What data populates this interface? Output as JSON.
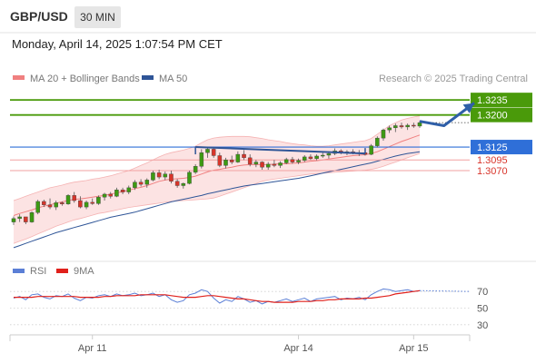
{
  "header": {
    "symbol": "GBP/USD",
    "timeframe": "30 MIN",
    "timestamp": "Monday, April 14, 2025 1:07:54 PM CET"
  },
  "chart_data": [
    {
      "type": "candlestick",
      "legend": [
        {
          "label": "MA 20 + Bollinger Bands",
          "color": "#f08080"
        },
        {
          "label": "MA 50",
          "color": "#2f5597"
        }
      ],
      "legend_placement": "top-left",
      "credit": "Research © 2025 Trading Central",
      "y_range": [
        1.2875,
        1.3265
      ],
      "levels": [
        {
          "value": 1.3235,
          "label": "1.3235",
          "color": "#4a9a0a",
          "style": "box"
        },
        {
          "value": 1.32,
          "label": "1.3200",
          "color": "#4a9a0a",
          "style": "box"
        },
        {
          "value": 1.3125,
          "label": "1.3125",
          "color": "#2f6fd8",
          "style": "box"
        },
        {
          "value": 1.3095,
          "label": "1.3095",
          "color": "#d8342a",
          "style": "text"
        },
        {
          "value": 1.307,
          "label": "1.3070",
          "color": "#d8342a",
          "style": "text"
        }
      ],
      "x_ticks": [
        "Apr 11",
        "Apr 14",
        "Apr 15"
      ],
      "candles": [
        [
          1.295,
          1.2963,
          1.2943,
          1.2958
        ],
        [
          1.2958,
          1.2968,
          1.295,
          1.2962
        ],
        [
          1.2962,
          1.296,
          1.2945,
          1.295
        ],
        [
          1.295,
          1.2975,
          1.2948,
          1.2972
        ],
        [
          1.2972,
          1.3002,
          1.2968,
          1.2998
        ],
        [
          1.2998,
          1.3002,
          1.2985,
          1.299
        ],
        [
          1.299,
          1.3005,
          1.298,
          1.2985
        ],
        [
          1.2985,
          1.3,
          1.2978,
          1.2995
        ],
        [
          1.2995,
          1.2998,
          1.2988,
          1.2992
        ],
        [
          1.2992,
          1.3015,
          1.299,
          1.3012
        ],
        [
          1.3012,
          1.302,
          1.2995,
          1.3
        ],
        [
          1.3,
          1.301,
          1.2982,
          1.2985
        ],
        [
          1.2985,
          1.3,
          1.298,
          1.2996
        ],
        [
          1.2996,
          1.3005,
          1.299,
          1.2993
        ],
        [
          1.2993,
          1.3012,
          1.299,
          1.3008
        ],
        [
          1.3008,
          1.3018,
          1.3,
          1.3015
        ],
        [
          1.3015,
          1.302,
          1.3005,
          1.301
        ],
        [
          1.301,
          1.303,
          1.3008,
          1.3025
        ],
        [
          1.3025,
          1.303,
          1.3015,
          1.302
        ],
        [
          1.302,
          1.3035,
          1.3015,
          1.303
        ],
        [
          1.303,
          1.3048,
          1.3025,
          1.3043
        ],
        [
          1.3043,
          1.305,
          1.3033,
          1.3038
        ],
        [
          1.3038,
          1.3052,
          1.303,
          1.3048
        ],
        [
          1.3048,
          1.307,
          1.3045,
          1.3065
        ],
        [
          1.3065,
          1.3072,
          1.305,
          1.3055
        ],
        [
          1.3055,
          1.3068,
          1.3048,
          1.3062
        ],
        [
          1.3062,
          1.307,
          1.304,
          1.3045
        ],
        [
          1.3045,
          1.305,
          1.303,
          1.3035
        ],
        [
          1.3035,
          1.3042,
          1.3028,
          1.304
        ],
        [
          1.304,
          1.307,
          1.3038,
          1.3066
        ],
        [
          1.3066,
          1.3085,
          1.3062,
          1.308
        ],
        [
          1.308,
          1.312,
          1.3075,
          1.3112
        ],
        [
          1.3112,
          1.3125,
          1.31,
          1.312
        ],
        [
          1.312,
          1.3124,
          1.31,
          1.3105
        ],
        [
          1.3105,
          1.3112,
          1.3078,
          1.3082
        ],
        [
          1.3082,
          1.31,
          1.3075,
          1.3095
        ],
        [
          1.3095,
          1.3105,
          1.3085,
          1.309
        ],
        [
          1.309,
          1.3115,
          1.3088,
          1.3108
        ],
        [
          1.3108,
          1.3118,
          1.3095,
          1.31
        ],
        [
          1.31,
          1.3108,
          1.308,
          1.3085
        ],
        [
          1.3085,
          1.3095,
          1.3078,
          1.309
        ],
        [
          1.309,
          1.3092,
          1.3072,
          1.3078
        ],
        [
          1.3078,
          1.309,
          1.3072,
          1.3085
        ],
        [
          1.3085,
          1.3095,
          1.3078,
          1.3082
        ],
        [
          1.3082,
          1.3092,
          1.3076,
          1.3088
        ],
        [
          1.3088,
          1.31,
          1.3085,
          1.3096
        ],
        [
          1.3096,
          1.3102,
          1.3086,
          1.309
        ],
        [
          1.309,
          1.3098,
          1.3085,
          1.3094
        ],
        [
          1.3094,
          1.3106,
          1.309,
          1.3102
        ],
        [
          1.3102,
          1.3108,
          1.3095,
          1.3098
        ],
        [
          1.3098,
          1.3108,
          1.3094,
          1.3104
        ],
        [
          1.3104,
          1.3112,
          1.31,
          1.3106
        ],
        [
          1.3106,
          1.3115,
          1.3098,
          1.311
        ],
        [
          1.311,
          1.3122,
          1.3106,
          1.3116
        ],
        [
          1.3116,
          1.312,
          1.3108,
          1.3112
        ],
        [
          1.3112,
          1.3118,
          1.3106,
          1.3114
        ],
        [
          1.3114,
          1.312,
          1.3108,
          1.311
        ],
        [
          1.311,
          1.3118,
          1.3104,
          1.3112
        ],
        [
          1.3112,
          1.3118,
          1.3105,
          1.3108
        ],
        [
          1.3108,
          1.3132,
          1.3106,
          1.3128
        ],
        [
          1.3128,
          1.315,
          1.3124,
          1.3146
        ],
        [
          1.3146,
          1.3168,
          1.314,
          1.3165
        ],
        [
          1.3165,
          1.3175,
          1.3158,
          1.317
        ],
        [
          1.317,
          1.318,
          1.316,
          1.3175
        ],
        [
          1.3175,
          1.3182,
          1.3168,
          1.3172
        ],
        [
          1.3172,
          1.318,
          1.3165,
          1.3176
        ],
        [
          1.3176,
          1.3182,
          1.317,
          1.3174
        ],
        [
          1.3174,
          1.3186,
          1.317,
          1.3182
        ]
      ],
      "ma20": [
        1.2965,
        1.297,
        1.2974,
        1.2978,
        1.2983,
        1.2987,
        1.299,
        1.2994,
        1.2997,
        1.3,
        1.3003,
        1.3004,
        1.3006,
        1.3008,
        1.301,
        1.3012,
        1.3015,
        1.3018,
        1.3021,
        1.3024,
        1.3028,
        1.3031,
        1.3035,
        1.304,
        1.3045,
        1.3048,
        1.305,
        1.3051,
        1.3052,
        1.3054,
        1.3057,
        1.3062,
        1.3067,
        1.3071,
        1.3073,
        1.3076,
        1.3078,
        1.3081,
        1.3083,
        1.3084,
        1.3084,
        1.3084,
        1.3084,
        1.3085,
        1.3086,
        1.3086,
        1.3087,
        1.3088,
        1.309,
        1.3092,
        1.3093,
        1.3095,
        1.3097,
        1.3099,
        1.3101,
        1.3103,
        1.3105,
        1.3106,
        1.3107,
        1.311,
        1.3114,
        1.312,
        1.3126,
        1.3132,
        1.3138,
        1.3143,
        1.3148,
        1.3153
      ],
      "bb_upper": [
        1.3,
        1.3005,
        1.301,
        1.3015,
        1.302,
        1.3025,
        1.303,
        1.3033,
        1.3036,
        1.304,
        1.3043,
        1.3045,
        1.3047,
        1.305,
        1.3052,
        1.3055,
        1.3058,
        1.3062,
        1.3066,
        1.307,
        1.3076,
        1.3082,
        1.3088,
        1.3095,
        1.3102,
        1.3108,
        1.3112,
        1.3115,
        1.3118,
        1.3122,
        1.3127,
        1.3135,
        1.3142,
        1.3146,
        1.3148,
        1.3149,
        1.315,
        1.315,
        1.315,
        1.3149,
        1.3147,
        1.3145,
        1.3142,
        1.314,
        1.3138,
        1.3135,
        1.3133,
        1.3131,
        1.313,
        1.3128,
        1.3127,
        1.3127,
        1.3128,
        1.313,
        1.3132,
        1.3134,
        1.3136,
        1.3138,
        1.314,
        1.3145,
        1.3155,
        1.3165,
        1.3175,
        1.3182,
        1.3188,
        1.3192,
        1.3195,
        1.3198
      ],
      "bb_lower": [
        1.29,
        1.2905,
        1.291,
        1.2916,
        1.2922,
        1.2928,
        1.2934,
        1.294,
        1.2945,
        1.295,
        1.2955,
        1.2958,
        1.2962,
        1.2966,
        1.297,
        1.2972,
        1.2975,
        1.2978,
        1.2981,
        1.2984,
        1.2986,
        1.2988,
        1.299,
        1.2992,
        1.2994,
        1.2996,
        1.2998,
        1.2999,
        1.3,
        1.3001,
        1.3002,
        1.3003,
        1.3004,
        1.3006,
        1.301,
        1.3015,
        1.302,
        1.3025,
        1.303,
        1.3035,
        1.304,
        1.3045,
        1.3048,
        1.305,
        1.3052,
        1.3054,
        1.3056,
        1.3058,
        1.306,
        1.3062,
        1.3063,
        1.3064,
        1.3065,
        1.3066,
        1.3067,
        1.3068,
        1.3069,
        1.307,
        1.3071,
        1.3073,
        1.3076,
        1.308,
        1.3085,
        1.309,
        1.3095,
        1.31,
        1.3105,
        1.311
      ],
      "ma50": [
        1.289,
        1.2895,
        1.29,
        1.2905,
        1.291,
        1.2915,
        1.292,
        1.2925,
        1.2929,
        1.2933,
        1.2937,
        1.2941,
        1.2945,
        1.2949,
        1.2953,
        1.2957,
        1.2961,
        1.2964,
        1.2967,
        1.297,
        1.2973,
        1.2977,
        1.2981,
        1.2985,
        1.2989,
        1.2993,
        1.2997,
        1.3,
        1.3003,
        1.3006,
        1.3009,
        1.3012,
        1.3016,
        1.3019,
        1.3022,
        1.3025,
        1.3028,
        1.3031,
        1.3034,
        1.3036,
        1.3038,
        1.304,
        1.3042,
        1.3044,
        1.3046,
        1.3048,
        1.305,
        1.3052,
        1.3055,
        1.3058,
        1.3061,
        1.3064,
        1.3067,
        1.307,
        1.3073,
        1.3076,
        1.3079,
        1.3082,
        1.3085,
        1.3088,
        1.3092,
        1.3096,
        1.31,
        1.3104,
        1.3107,
        1.311,
        1.3112,
        1.3114
      ],
      "trendline": [
        [
          30,
          1.3125
        ],
        [
          58,
          1.311
        ]
      ],
      "forecast_arrow": [
        [
          67,
          1.3185
        ],
        [
          71,
          1.3175
        ],
        [
          76,
          1.3228
        ]
      ]
    },
    {
      "type": "line",
      "legend": [
        {
          "label": "RSI",
          "color": "#5b7fd6"
        },
        {
          "label": "9MA",
          "color": "#e0201b"
        }
      ],
      "y_range": [
        20,
        80
      ],
      "y_ticks": [
        70,
        50,
        30
      ],
      "rsi": [
        62,
        64,
        60,
        66,
        67,
        63,
        61,
        65,
        64,
        67,
        62,
        59,
        63,
        62,
        65,
        66,
        64,
        67,
        65,
        66,
        68,
        65,
        66,
        68,
        64,
        66,
        60,
        57,
        59,
        66,
        68,
        72,
        70,
        62,
        56,
        60,
        58,
        64,
        61,
        57,
        59,
        55,
        58,
        57,
        59,
        61,
        58,
        60,
        62,
        58,
        61,
        62,
        63,
        64,
        60,
        62,
        61,
        63,
        60,
        66,
        70,
        73,
        72,
        70,
        71,
        72,
        70,
        71
      ],
      "ma9": [
        63,
        63,
        63,
        63,
        64,
        64,
        64,
        64,
        64,
        64,
        64,
        63,
        63,
        63,
        63,
        64,
        64,
        65,
        65,
        65,
        65,
        66,
        66,
        66,
        66,
        66,
        65,
        64,
        63,
        63,
        63,
        64,
        65,
        65,
        64,
        63,
        62,
        61,
        61,
        60,
        59,
        58,
        58,
        57,
        57,
        57,
        57,
        58,
        58,
        58,
        59,
        59,
        60,
        60,
        61,
        61,
        61,
        61,
        62,
        62,
        63,
        64,
        65,
        67,
        68,
        69,
        70,
        71
      ],
      "projection": 70
    }
  ]
}
